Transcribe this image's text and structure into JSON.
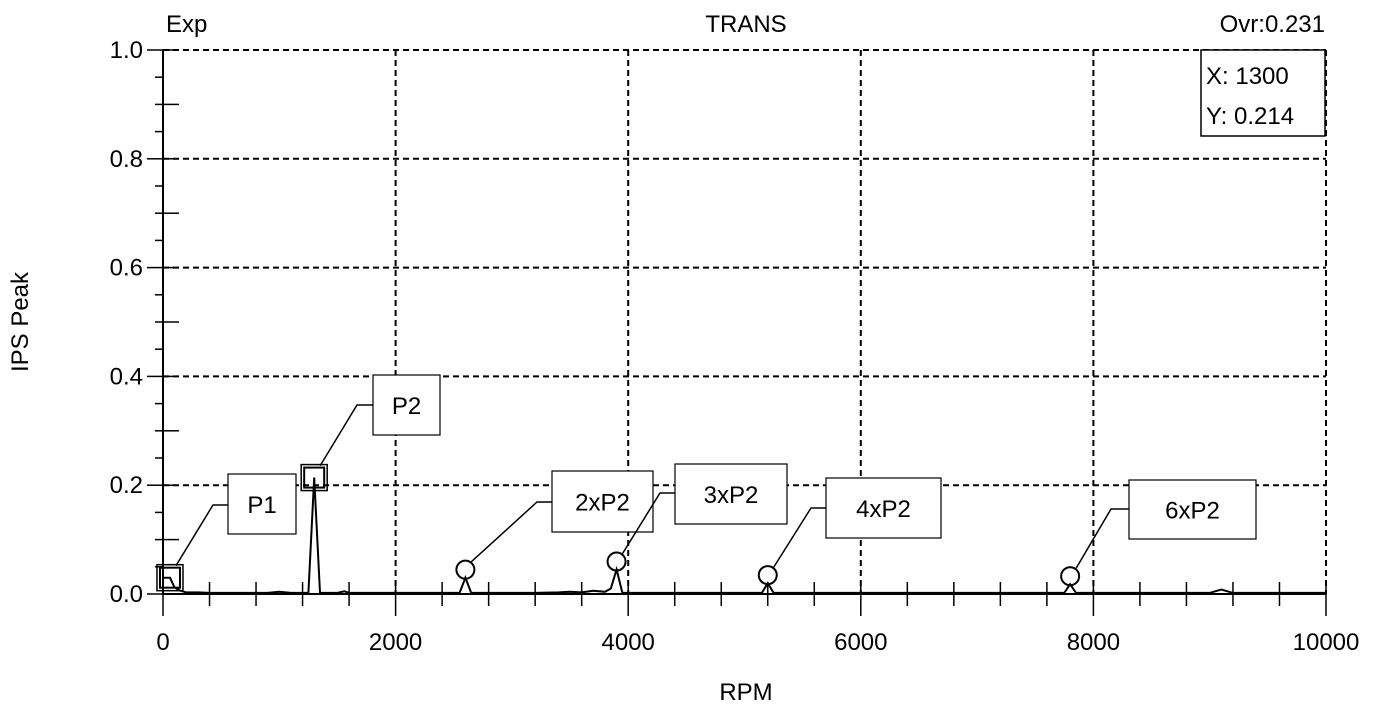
{
  "header": {
    "left": "Exp",
    "center": "TRANS",
    "right": "Ovr:0.231"
  },
  "cursor_readout": {
    "x_text": "X: 1300",
    "y_text": "Y: 0.214"
  },
  "chart_data": {
    "type": "line",
    "title": "TRANS",
    "xlabel": "RPM",
    "ylabel": "IPS Peak",
    "xlim": [
      0,
      10000
    ],
    "ylim": [
      0,
      1.0
    ],
    "x_ticks": [
      0,
      2000,
      4000,
      6000,
      8000,
      10000
    ],
    "y_ticks": [
      0.0,
      0.2,
      0.4,
      0.6,
      0.8,
      1.0
    ],
    "x_tick_labels": [
      "0",
      "2000",
      "4000",
      "6000",
      "8000",
      "10000"
    ],
    "y_tick_labels": [
      "0.0",
      "0.2",
      "0.4",
      "0.6",
      "0.8",
      "1.0"
    ],
    "grid": true,
    "series": [
      {
        "x": [
          0,
          60,
          100,
          150,
          200,
          300,
          400,
          500,
          600,
          700,
          800,
          900,
          1000,
          1100,
          1200,
          1250,
          1300,
          1350,
          1400,
          1500,
          1560,
          1600,
          1700,
          1800,
          1900,
          2000,
          2200,
          2400,
          2550,
          2600,
          2650,
          2800,
          3000,
          3200,
          3400,
          3500,
          3600,
          3700,
          3800,
          3850,
          3900,
          3950,
          4000,
          4200,
          4500,
          5000,
          5150,
          5200,
          5250,
          5500,
          6000,
          6500,
          7000,
          7500,
          7750,
          7800,
          7850,
          8000,
          8500,
          9000,
          9100,
          9200,
          9500,
          10000
        ],
        "y": [
          0.03,
          0.03,
          0.012,
          0.006,
          0.003,
          0.003,
          0.002,
          0.002,
          0.002,
          0.002,
          0.002,
          0.002,
          0.004,
          0.002,
          0.002,
          0.002,
          0.214,
          0.002,
          0.002,
          0.002,
          0.005,
          0.002,
          0.002,
          0.002,
          0.002,
          0.002,
          0.002,
          0.002,
          0.002,
          0.03,
          0.002,
          0.002,
          0.002,
          0.002,
          0.003,
          0.004,
          0.003,
          0.006,
          0.004,
          0.01,
          0.045,
          0.002,
          0.002,
          0.002,
          0.002,
          0.002,
          0.002,
          0.02,
          0.002,
          0.002,
          0.002,
          0.002,
          0.002,
          0.002,
          0.002,
          0.018,
          0.002,
          0.002,
          0.002,
          0.002,
          0.008,
          0.002,
          0.002,
          0.002
        ]
      }
    ],
    "annotations": [
      {
        "label": "P1",
        "x": 60,
        "y": 0.03,
        "marker": "square"
      },
      {
        "label": "P2",
        "x": 1300,
        "y": 0.214,
        "marker": "square"
      },
      {
        "label": "2xP2",
        "x": 2600,
        "y": 0.03,
        "marker": "circle"
      },
      {
        "label": "3xP2",
        "x": 3900,
        "y": 0.045,
        "marker": "circle"
      },
      {
        "label": "4xP2",
        "x": 5200,
        "y": 0.02,
        "marker": "circle"
      },
      {
        "label": "6xP2",
        "x": 7800,
        "y": 0.018,
        "marker": "circle"
      }
    ],
    "colors": {
      "line": "#000000",
      "grid": "#000000",
      "background": "#ffffff"
    }
  }
}
